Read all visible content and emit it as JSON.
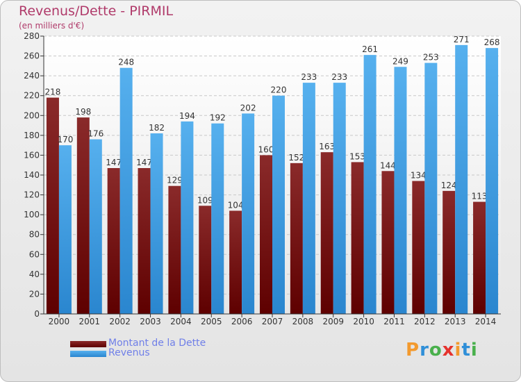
{
  "header": {
    "title": "Revenus/Dette - PIRMIL",
    "subtitle": "(en milliers d'€)"
  },
  "logo": {
    "letters": [
      "P",
      "r",
      "o",
      "x",
      "i",
      "t",
      "i"
    ],
    "colors": [
      "#f39a2e",
      "#2f8fd8",
      "#49b04c",
      "#e5322d",
      "#f39a2e",
      "#2f8fd8",
      "#49b04c"
    ]
  },
  "chart_data": {
    "type": "bar",
    "categories": [
      "2000",
      "2001",
      "2002",
      "2003",
      "2004",
      "2005",
      "2006",
      "2007",
      "2008",
      "2009",
      "2010",
      "2011",
      "2012",
      "2013",
      "2014"
    ],
    "series": [
      {
        "name": "Montant de la Dette",
        "color": "#7b1a1a",
        "values": [
          218,
          198,
          147,
          147,
          129,
          109,
          104,
          160,
          152,
          163,
          153,
          144,
          134,
          124,
          113
        ]
      },
      {
        "name": "Revenus",
        "color": "#3a9be0",
        "values": [
          170,
          176,
          248,
          182,
          194,
          192,
          202,
          220,
          233,
          233,
          261,
          249,
          253,
          271,
          268
        ]
      }
    ],
    "ylim": [
      0,
      280
    ],
    "ytick_step": 20,
    "yticks": [
      "0",
      "20",
      "40",
      "60",
      "80",
      "100",
      "120",
      "140",
      "160",
      "180",
      "200",
      "220",
      "240",
      "260",
      "280"
    ],
    "grid": true,
    "legend": "bottom-left"
  }
}
